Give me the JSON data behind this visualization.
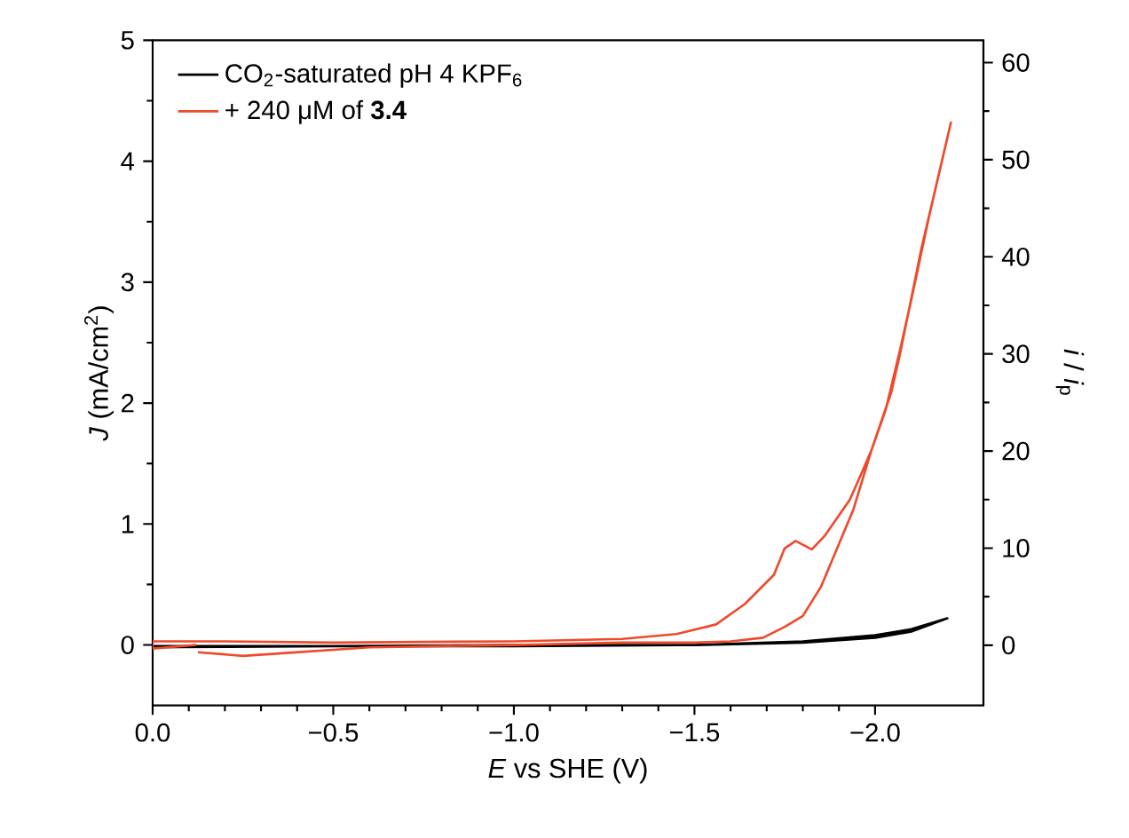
{
  "chart_data": {
    "type": "line",
    "xlabel": "*E* vs SHE (V)",
    "ylabel": "*J* (mA/cm$^{2}$)",
    "y2label": "*i* / *i*$_{p}$",
    "xlim": [
      0,
      -2.3
    ],
    "ylim": [
      -0.5,
      5
    ],
    "y2lim": [
      -6.2,
      62.3
    ],
    "xticks": [
      {
        "value": 0,
        "label": "0.0"
      },
      {
        "value": -0.5,
        "label": "−0.5"
      },
      {
        "value": -1,
        "label": "−1.0"
      },
      {
        "value": -1.5,
        "label": "−1.5"
      },
      {
        "value": -2,
        "label": "−2.0"
      }
    ],
    "yticks": [
      0,
      1,
      2,
      3,
      4,
      5
    ],
    "y2ticks": [
      0,
      10,
      20,
      30,
      40,
      50,
      60
    ],
    "legend": "top left",
    "grid": false,
    "marker": "none",
    "line_style": "solid",
    "series": [
      {
        "name": "CO$_{2}$-saturated pH 4 KPF$_{6}$",
        "color": "#000000",
        "x": [
          0,
          -0.5,
          -1.0,
          -1.5,
          -1.8,
          -2.0,
          -2.1,
          -2.2,
          -2.1,
          -2.0,
          -1.8,
          -1.5,
          -1.0,
          -0.5,
          0
        ],
        "values": [
          -0.02,
          -0.01,
          0.0,
          0.0,
          0.03,
          0.08,
          0.13,
          0.22,
          0.11,
          0.06,
          0.02,
          0.0,
          -0.01,
          -0.01,
          -0.01
        ]
      },
      {
        "name": "+ 240 μM of **3.4**",
        "color": "#ee4a2c",
        "x": [
          -0.125,
          -0.25,
          -0.35,
          -0.6,
          -1.0,
          -1.3,
          -1.5,
          -1.6,
          -1.69,
          -1.75,
          -1.8,
          -1.85,
          -1.94,
          -1.99,
          -2.045,
          -2.07,
          -2.127,
          -2.21,
          -2.15,
          -2.1,
          -2.07,
          -2.03,
          -1.99,
          -1.964,
          -1.93,
          -1.86,
          -1.825,
          -1.78,
          -1.75,
          -1.72,
          -1.64,
          -1.56,
          -1.45,
          -1.3,
          -1.0,
          -0.5,
          -0.2,
          0,
          0,
          -0.12
        ],
        "values": [
          -0.06,
          -0.09,
          -0.07,
          -0.02,
          0.0,
          0.02,
          0.02,
          0.03,
          0.06,
          0.15,
          0.24,
          0.48,
          1.12,
          1.61,
          2.09,
          2.42,
          3.26,
          4.32,
          3.55,
          2.85,
          2.45,
          1.95,
          1.61,
          1.43,
          1.2,
          0.9,
          0.79,
          0.86,
          0.8,
          0.58,
          0.34,
          0.17,
          0.09,
          0.05,
          0.03,
          0.02,
          0.03,
          0.03,
          -0.03,
          0.0
        ]
      }
    ]
  }
}
